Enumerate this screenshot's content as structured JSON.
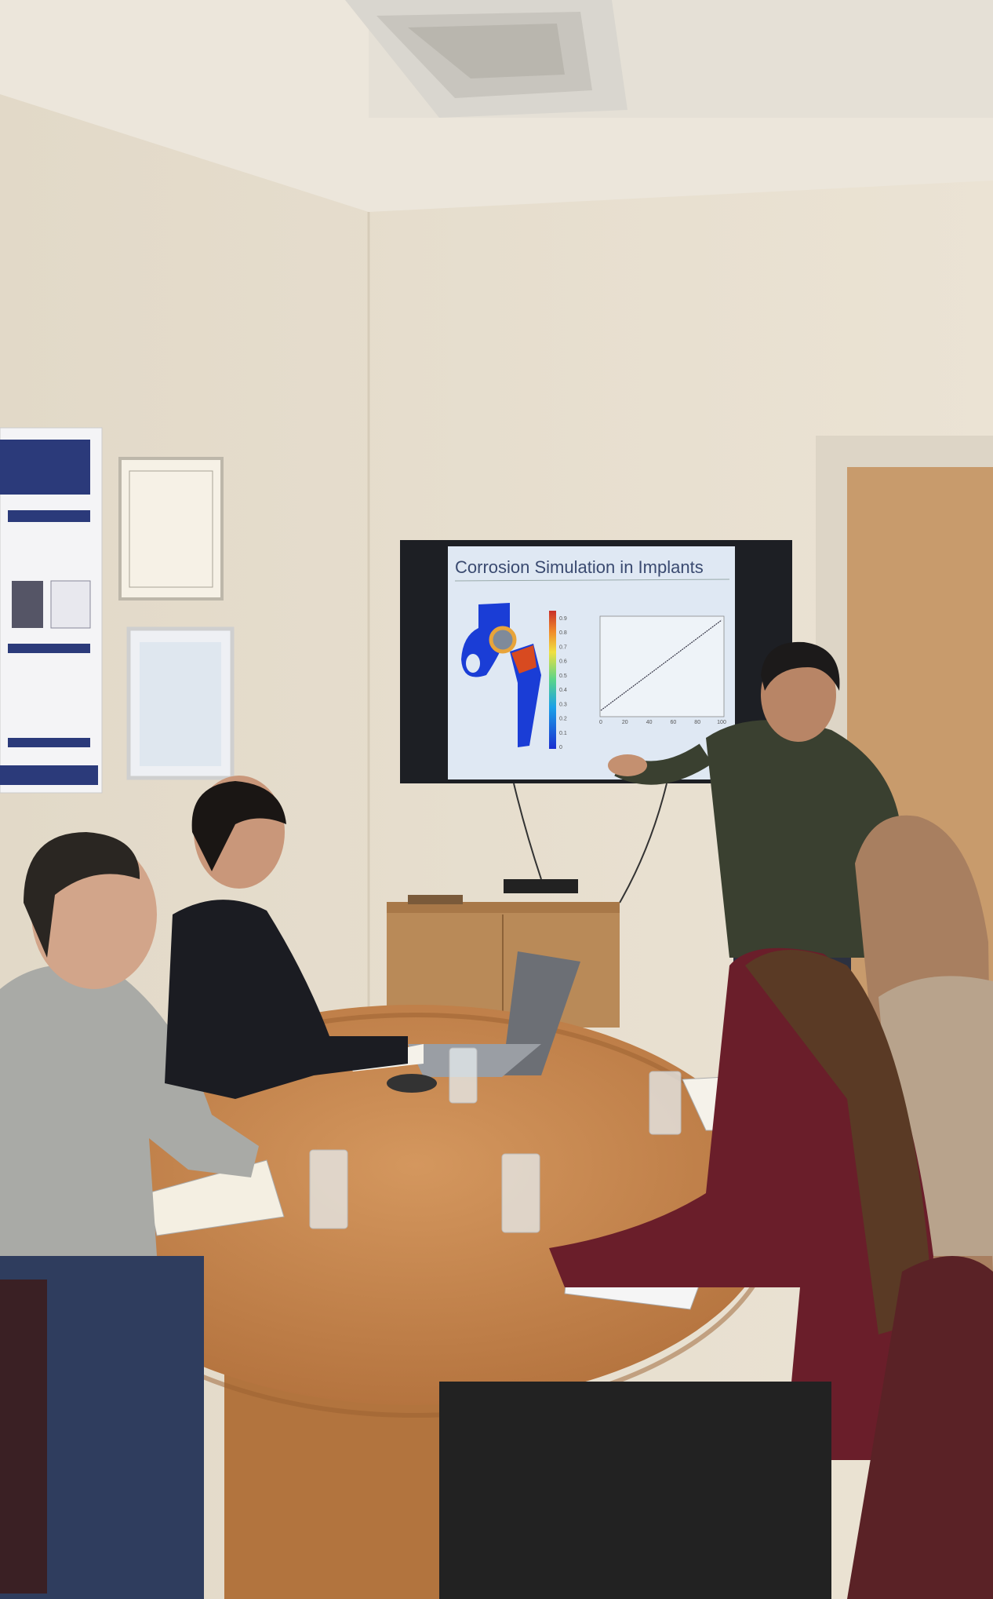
{
  "scene": {
    "description_colors": {
      "wall": "#ece4d6",
      "table": "#c98a52",
      "door": "#c89b6c",
      "screen_bg": "#dfe8f3"
    }
  },
  "tv": {
    "slide_title": "Corrosion Simulation in Implants",
    "chart_x_ticks": [
      "0",
      "20",
      "40",
      "60",
      "80",
      "100"
    ],
    "colorbar_ticks": [
      "0.9",
      "0.8",
      "0.7",
      "0.6",
      "0.5",
      "0.4",
      "0.3",
      "0.2",
      "0.1",
      "0"
    ]
  }
}
